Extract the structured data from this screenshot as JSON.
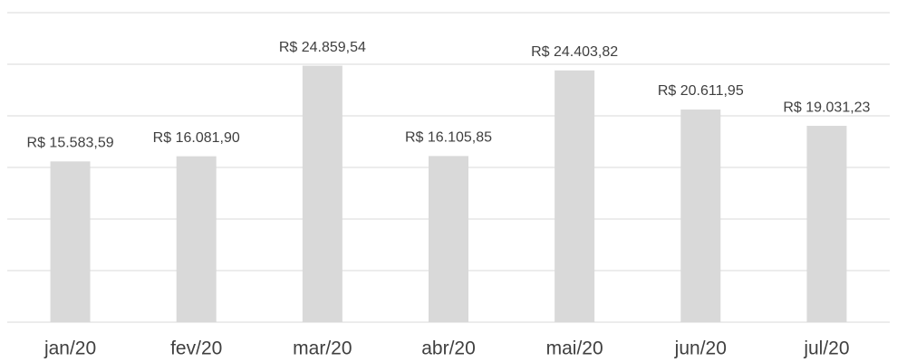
{
  "chart_data": {
    "type": "bar",
    "categories": [
      "jan/20",
      "fev/20",
      "mar/20",
      "abr/20",
      "mai/20",
      "jun/20",
      "jul/20"
    ],
    "values": [
      15583.59,
      16081.9,
      24859.54,
      16105.85,
      24403.82,
      20611.95,
      19031.23
    ],
    "value_labels": [
      "R$ 15.583,59",
      "R$ 16.081,90",
      "R$ 24.859,54",
      "R$ 16.105,85",
      "R$ 24.403,82",
      "R$ 20.611,95",
      "R$ 19.031,23"
    ],
    "color": "#d9d9d9",
    "ylim": [
      0,
      30000
    ],
    "yticks": [
      0,
      5000,
      10000,
      15000,
      20000,
      25000,
      30000
    ],
    "grid": true
  }
}
